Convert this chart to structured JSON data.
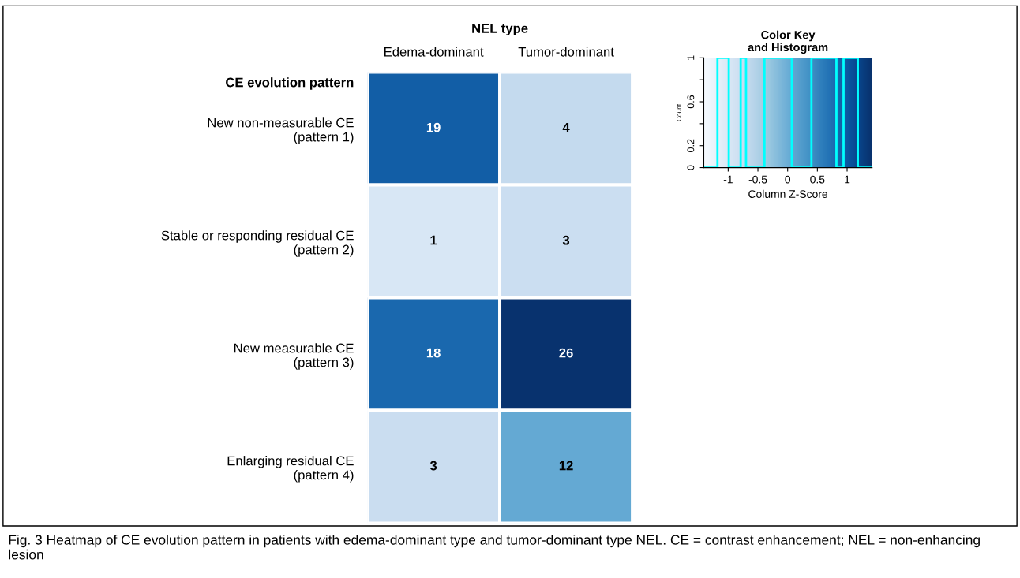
{
  "chart_data": [
    {
      "type": "heatmap",
      "title": "NEL type",
      "ylabel": "CE evolution pattern",
      "categories": [
        "Edema-dominant",
        "Tumor-dominant"
      ],
      "y_categories": [
        "New non-measurable CE\n(pattern 1)",
        "Stable or responding residual CE\n(pattern 2)",
        "New measurable CE\n(pattern 3)",
        "Enlarging residual CE\n(pattern 4)"
      ],
      "cells": [
        [
          19,
          4
        ],
        [
          1,
          3
        ],
        [
          18,
          26
        ],
        [
          3,
          12
        ]
      ],
      "data_labels": true,
      "annotations": [
        "Fig. 3 Heatmap of CE evolution pattern in patients with edema-dominant type and tumor-dominant type NEL. CE = contrast enhancement; NEL = non-enhancing lesion"
      ]
    },
    {
      "type": "histogram",
      "title": "Color Key\nand Histogram",
      "xlabel": "Column Z-Score",
      "ylabel": "Count",
      "bins": [
        -1.41,
        -1.18,
        -0.99,
        -0.79,
        -0.7,
        -0.39,
        0.07,
        0.4,
        0.82,
        0.94,
        1.18,
        1.42
      ],
      "values": [
        0,
        1,
        0,
        1,
        0,
        1,
        0,
        1,
        0,
        1,
        0
      ],
      "color": "#00ffff",
      "xlim": [
        -1.41,
        1.42
      ],
      "xticks": [
        -1,
        -0.5,
        0,
        0.5,
        1
      ],
      "ylim": [
        0,
        1
      ],
      "yticks": [
        0,
        {
          "value": 0.2,
          "label": "0.2"
        },
        {
          "value": 0.4,
          "label": null
        },
        0.6,
        {
          "value": 0.8,
          "label": null
        },
        1
      ]
    }
  ]
}
